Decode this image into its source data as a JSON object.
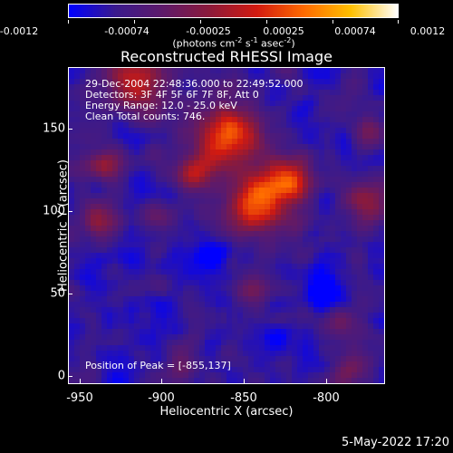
{
  "colorbar": {
    "ticks": [
      "-0.0012",
      "-0.00074",
      "-0.00025",
      "0.00025",
      "0.00074",
      "0.0012"
    ],
    "units": "(photons cm-2 s-1 asec-2)",
    "colormap": [
      "#0000ff",
      "#3a1a8c",
      "#5e1a6a",
      "#8c1a3a",
      "#d21a10",
      "#ff6a00",
      "#ffc000",
      "#ffffff"
    ]
  },
  "plot": {
    "title": "Reconstructed RHESSI Image",
    "annotations": [
      "29-Dec-2004 22:48:36.000 to 22:49:52.000",
      "Detectors: 3F 4F 5F 6F 7F 8F, Att 0",
      "Energy Range: 12.0 - 25.0 keV",
      "Clean     Total counts: 746."
    ],
    "peak_text": "Position of Peak = [-855,137]",
    "x_ticks": [
      "-950",
      "-900",
      "-850",
      "-800"
    ],
    "y_ticks": [
      "150",
      "100",
      "50",
      "0"
    ],
    "xlabel": "Heliocentric X (arcsec)",
    "ylabel": "Heliocentric Y (arcsec)"
  },
  "footer": {
    "date": "5-May-2022 17:20"
  }
}
